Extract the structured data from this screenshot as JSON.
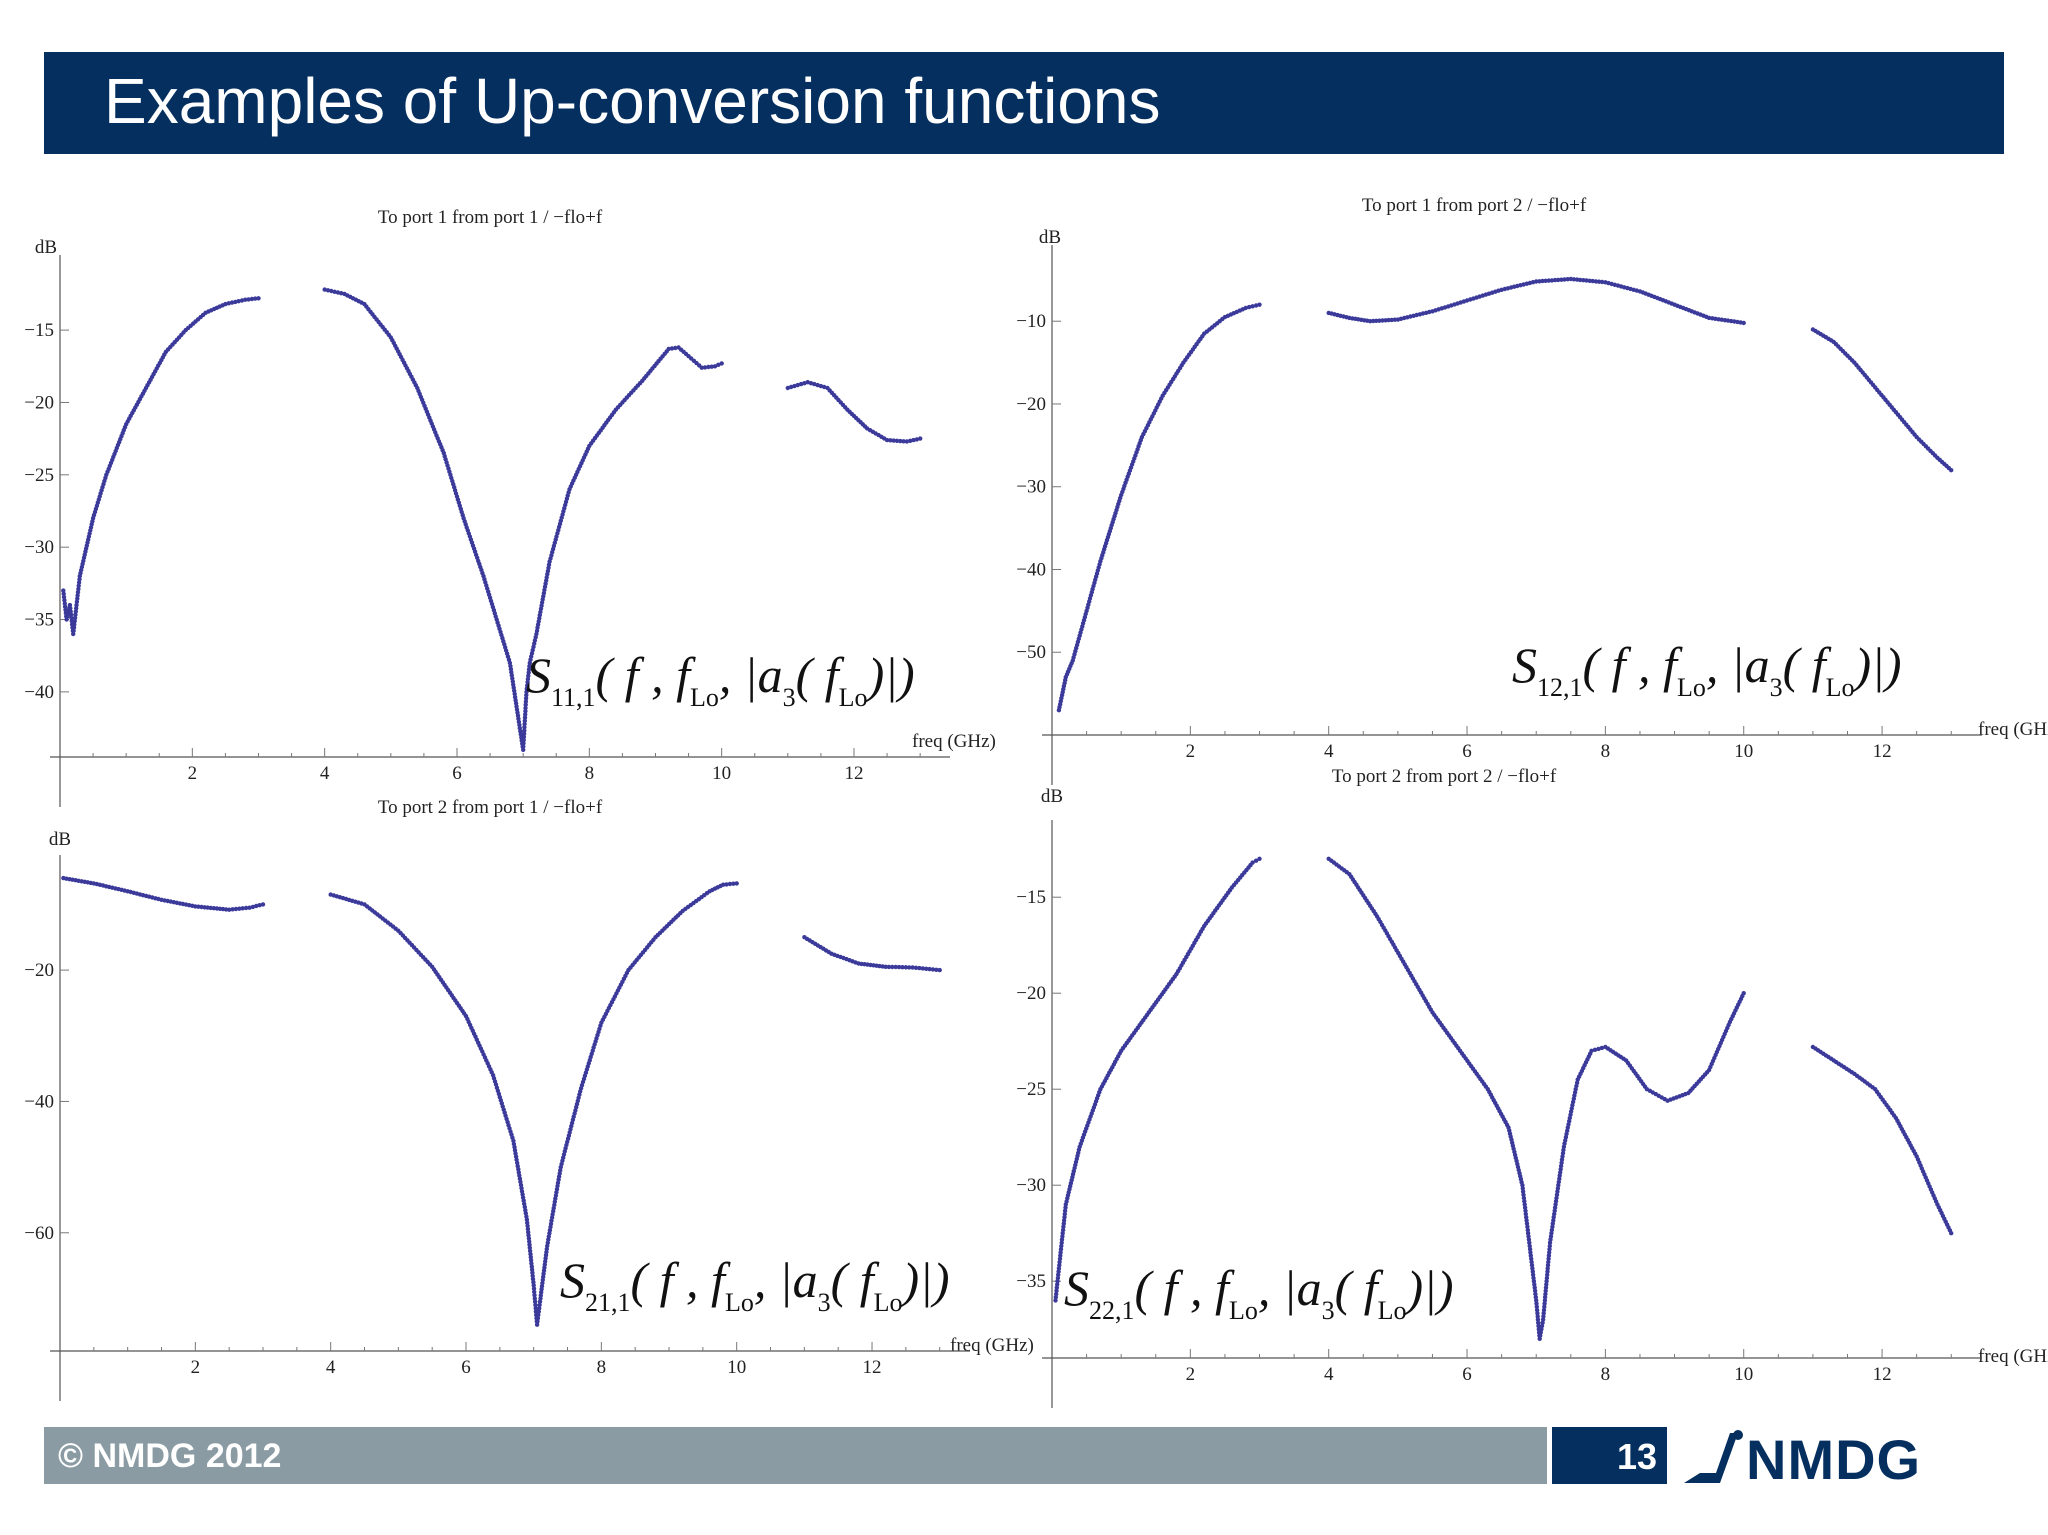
{
  "header": {
    "title": "Examples of Up-conversion functions"
  },
  "footer": {
    "copyright": "© NMDG 2012",
    "page_number": "13",
    "logo_text": "NMDG"
  },
  "colors": {
    "header_bg": "#052f5f",
    "footer_bg": "#8a9ba4",
    "marker": "#3b3a9a"
  },
  "chart_data": [
    {
      "type": "scatter",
      "title": "To port 1 from port 1 / −flo+f",
      "ylabel": "dB",
      "xlabel": "freq (GHz)",
      "formula": {
        "main": "S",
        "sub": "11,1",
        "args": "( f , f",
        "lo": "Lo",
        "mid": ", |a",
        "a_sub": "3",
        "tail": "( f",
        "tail_lo": "Lo",
        "close": ")|)"
      },
      "xlim": [
        0,
        13.3
      ],
      "ylim": [
        -44.5,
        -10.5
      ],
      "xticks": [
        2,
        4,
        6,
        8,
        10,
        12
      ],
      "yticks": [
        -15,
        -20,
        -25,
        -30,
        -35,
        -40
      ],
      "segments": [
        {
          "x": [
            0.05,
            0.1,
            0.15,
            0.2,
            0.3,
            0.5,
            0.7,
            1.0,
            1.3,
            1.6,
            1.9,
            2.2,
            2.5,
            2.8,
            3.0
          ],
          "y": [
            -33,
            -35,
            -34,
            -36,
            -32,
            -28,
            -25,
            -21.5,
            -19,
            -16.5,
            -15,
            -13.8,
            -13.2,
            -12.9,
            -12.8
          ]
        },
        {
          "x": [
            4.0,
            4.3,
            4.6,
            5.0,
            5.4,
            5.8,
            6.1,
            6.4,
            6.6,
            6.8,
            6.9,
            7.0,
            7.05,
            7.1,
            7.2,
            7.4,
            7.7,
            8.0,
            8.4,
            8.8,
            9.2,
            9.35,
            9.5,
            9.7,
            9.9,
            10.0
          ],
          "y": [
            -12.2,
            -12.5,
            -13.2,
            -15.5,
            -19,
            -23.5,
            -28,
            -32,
            -35,
            -38,
            -41,
            -44,
            -40,
            -38,
            -36,
            -31,
            -26,
            -23,
            -20.5,
            -18.5,
            -16.3,
            -16.2,
            -16.8,
            -17.6,
            -17.5,
            -17.3
          ]
        },
        {
          "x": [
            11.0,
            11.3,
            11.6,
            11.9,
            12.2,
            12.5,
            12.8,
            13.0
          ],
          "y": [
            -19,
            -18.6,
            -19,
            -20.5,
            -21.8,
            -22.6,
            -22.7,
            -22.5
          ]
        }
      ]
    },
    {
      "type": "scatter",
      "title": "To port 1 from port 2 / −flo+f",
      "ylabel": "dB",
      "xlabel": "freq (GHz)",
      "formula": {
        "main": "S",
        "sub": "12,1",
        "args": "( f , f",
        "lo": "Lo",
        "mid": ", |a",
        "a_sub": "3",
        "tail": "( f",
        "tail_lo": "Lo",
        "close": ")|)"
      },
      "xlim": [
        0,
        13.3
      ],
      "ylim": [
        -60,
        -2
      ],
      "xticks": [
        2,
        4,
        6,
        8,
        10,
        12
      ],
      "yticks": [
        -10,
        -20,
        -30,
        -40,
        -50
      ],
      "segments": [
        {
          "x": [
            0.1,
            0.2,
            0.3,
            0.5,
            0.7,
            1.0,
            1.3,
            1.6,
            1.9,
            2.2,
            2.5,
            2.8,
            3.0
          ],
          "y": [
            -57,
            -53,
            -51,
            -45,
            -39,
            -31,
            -24,
            -19,
            -15,
            -11.5,
            -9.5,
            -8.4,
            -8.0
          ]
        },
        {
          "x": [
            4.0,
            4.3,
            4.6,
            5.0,
            5.5,
            6.0,
            6.5,
            7.0,
            7.5,
            8.0,
            8.5,
            9.0,
            9.5,
            10.0
          ],
          "y": [
            -9,
            -9.6,
            -10,
            -9.8,
            -8.8,
            -7.5,
            -6.2,
            -5.2,
            -4.9,
            -5.3,
            -6.4,
            -8.0,
            -9.6,
            -10.2
          ]
        },
        {
          "x": [
            11.0,
            11.3,
            11.6,
            11.9,
            12.2,
            12.5,
            12.8,
            13.0
          ],
          "y": [
            -11,
            -12.5,
            -15,
            -18,
            -21,
            -24,
            -26.5,
            -28
          ]
        }
      ]
    },
    {
      "type": "scatter",
      "title": "To port 2 from port 1 / −flo+f",
      "ylabel": "dB",
      "xlabel": "freq (GHz)",
      "formula": {
        "main": "S",
        "sub": "21,1",
        "args": "( f , f",
        "lo": "Lo",
        "mid": ", |a",
        "a_sub": "3",
        "tail": "( f",
        "tail_lo": "Lo",
        "close": ")|)"
      },
      "xlim": [
        0,
        13.3
      ],
      "ylim": [
        -78,
        -4
      ],
      "xticks": [
        2,
        4,
        6,
        8,
        10,
        12
      ],
      "yticks": [
        -20,
        -40,
        -60
      ],
      "segments": [
        {
          "x": [
            0.05,
            0.5,
            1.0,
            1.5,
            2.0,
            2.5,
            2.8,
            3.0
          ],
          "y": [
            -6,
            -6.8,
            -8,
            -9.3,
            -10.3,
            -10.8,
            -10.5,
            -10
          ]
        },
        {
          "x": [
            4.0,
            4.5,
            5.0,
            5.5,
            6.0,
            6.4,
            6.7,
            6.9,
            7.0,
            7.05,
            7.1,
            7.2,
            7.4,
            7.7,
            8.0,
            8.4,
            8.8,
            9.2,
            9.6,
            9.8,
            10.0
          ],
          "y": [
            -8.5,
            -10,
            -14,
            -19.5,
            -27,
            -36,
            -46,
            -58,
            -68,
            -74,
            -70,
            -62,
            -50,
            -38,
            -28,
            -20,
            -15,
            -11,
            -8,
            -7,
            -6.8
          ]
        },
        {
          "x": [
            11.0,
            11.4,
            11.8,
            12.2,
            12.6,
            13.0
          ],
          "y": [
            -15,
            -17.5,
            -19,
            -19.5,
            -19.6,
            -20
          ]
        }
      ]
    },
    {
      "type": "scatter",
      "title": "To port 2 from port 2 / −flo+f",
      "ylabel": "dB",
      "xlabel": "freq (GHz)",
      "formula": {
        "main": "S",
        "sub": "22,1",
        "args": "( f , f",
        "lo": "Lo",
        "mid": ", |a",
        "a_sub": "3",
        "tail": "( f",
        "tail_lo": "Lo",
        "close": ")|)"
      },
      "xlim": [
        0,
        13.3
      ],
      "ylim": [
        -39,
        -11.5
      ],
      "xticks": [
        2,
        4,
        6,
        8,
        10,
        12
      ],
      "yticks": [
        -15,
        -20,
        -25,
        -30,
        -35
      ],
      "segments": [
        {
          "x": [
            0.05,
            0.2,
            0.4,
            0.7,
            1.0,
            1.4,
            1.8,
            2.2,
            2.6,
            2.9,
            3.0
          ],
          "y": [
            -36,
            -31,
            -28,
            -25,
            -23,
            -21,
            -19,
            -16.5,
            -14.5,
            -13.2,
            -13.0
          ]
        },
        {
          "x": [
            4.0,
            4.3,
            4.7,
            5.1,
            5.5,
            5.9,
            6.3,
            6.6,
            6.8,
            6.9,
            7.0,
            7.05,
            7.1,
            7.2,
            7.4,
            7.6,
            7.8,
            8.0,
            8.3,
            8.6,
            8.9,
            9.2,
            9.5,
            9.8,
            10.0
          ],
          "y": [
            -13,
            -13.8,
            -16,
            -18.5,
            -21,
            -23,
            -25,
            -27,
            -30,
            -33,
            -36,
            -38,
            -37,
            -33,
            -28,
            -24.5,
            -23,
            -22.8,
            -23.5,
            -25,
            -25.6,
            -25.2,
            -24,
            -21.5,
            -20
          ]
        },
        {
          "x": [
            11.0,
            11.3,
            11.6,
            11.9,
            12.2,
            12.5,
            12.8,
            13.0
          ],
          "y": [
            -22.8,
            -23.5,
            -24.2,
            -25,
            -26.5,
            -28.5,
            -31,
            -32.5
          ]
        }
      ]
    }
  ]
}
